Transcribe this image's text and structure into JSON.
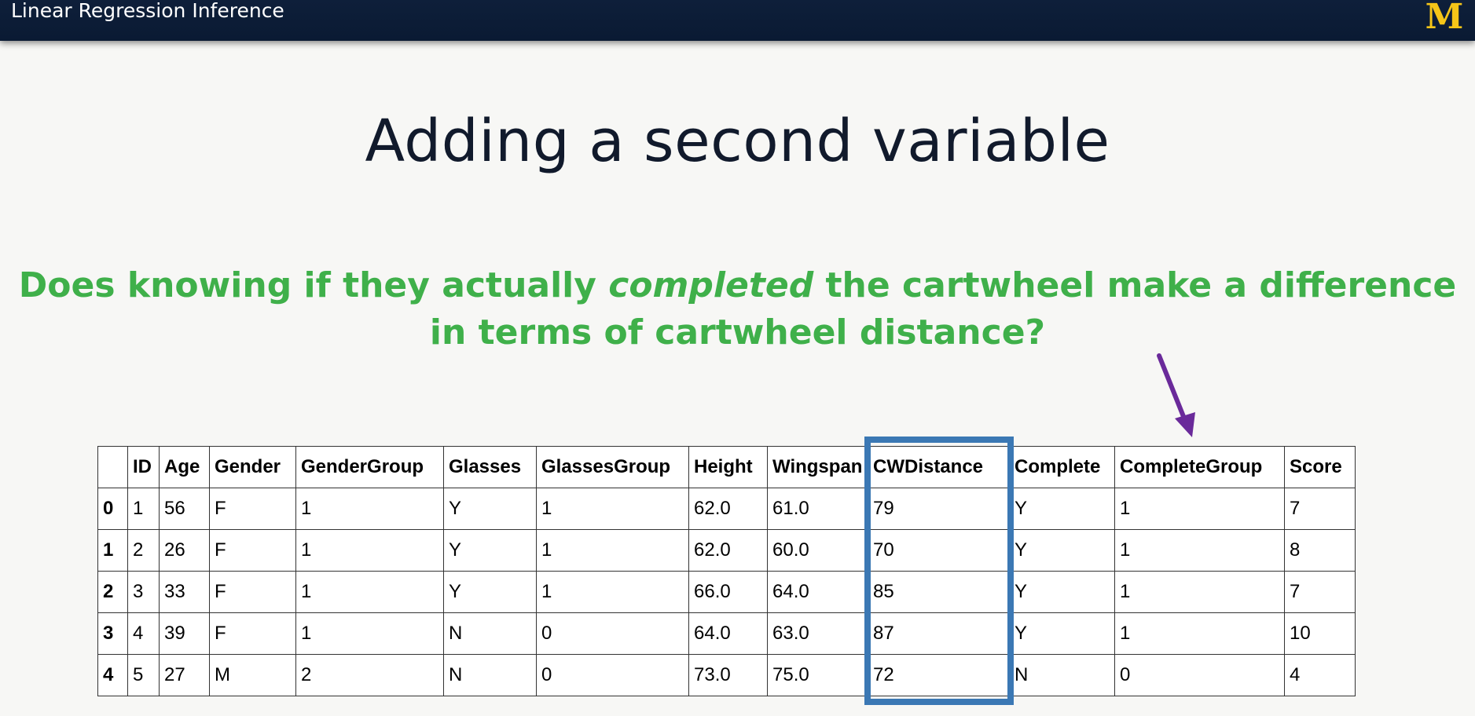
{
  "header": {
    "title": "Linear Regression Inference",
    "logo_letter": "M",
    "logo_color": "#f5c518",
    "bar_color": "#0e1f3a"
  },
  "slide": {
    "title": "Adding a second variable",
    "question_part1": "Does knowing if they actually ",
    "question_emphasis": "completed",
    "question_part2": " the cartwheel make a difference in terms of cartwheel distance?",
    "question_color": "#3fb04a",
    "arrow_color": "#6a2a9a",
    "highlight_color": "#3b78b4"
  },
  "table": {
    "columns": [
      "",
      "ID",
      "Age",
      "Gender",
      "GenderGroup",
      "Glasses",
      "GlassesGroup",
      "Height",
      "Wingspan",
      "CWDistance",
      "Complete",
      "CompleteGroup",
      "Score"
    ],
    "rows": [
      [
        "0",
        "1",
        "56",
        "F",
        "1",
        "Y",
        "1",
        "62.0",
        "61.0",
        "79",
        "Y",
        "1",
        "7"
      ],
      [
        "1",
        "2",
        "26",
        "F",
        "1",
        "Y",
        "1",
        "62.0",
        "60.0",
        "70",
        "Y",
        "1",
        "8"
      ],
      [
        "2",
        "3",
        "33",
        "F",
        "1",
        "Y",
        "1",
        "66.0",
        "64.0",
        "85",
        "Y",
        "1",
        "7"
      ],
      [
        "3",
        "4",
        "39",
        "F",
        "1",
        "N",
        "0",
        "64.0",
        "63.0",
        "87",
        "Y",
        "1",
        "10"
      ],
      [
        "4",
        "5",
        "27",
        "M",
        "2",
        "N",
        "0",
        "73.0",
        "75.0",
        "72",
        "N",
        "0",
        "4"
      ]
    ]
  }
}
